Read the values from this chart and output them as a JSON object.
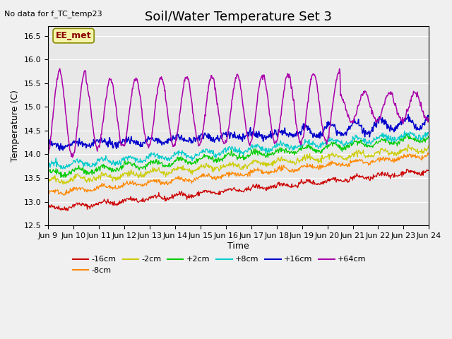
{
  "title": "Soil/Water Temperature Set 3",
  "xlabel": "Time",
  "ylabel": "Temperature (C)",
  "top_label": "No data for f_TC_temp23",
  "annotation": "EE_met",
  "ylim": [
    12.5,
    16.7
  ],
  "xlim": [
    0,
    15
  ],
  "xtick_labels": [
    "Jun 9",
    "Jun 10",
    "Jun 11",
    "Jun 12",
    "Jun 13",
    "Jun 14",
    "Jun 15",
    "Jun 16",
    "Jun 17",
    "Jun 18",
    "Jun 19",
    "Jun 20",
    "Jun 21",
    "Jun 22",
    "Jun 23",
    "Jun 24"
  ],
  "series_colors": {
    "-16cm": "#cc0000",
    "-8cm": "#ff8800",
    "-2cm": "#cccc00",
    "+2cm": "#00cc00",
    "+8cm": "#00cccc",
    "+16cm": "#0000cc",
    "+64cm": "#aa00aa"
  },
  "background_color": "#e8e8e8",
  "grid_color": "#ffffff",
  "title_fontsize": 13,
  "label_fontsize": 9,
  "tick_fontsize": 8
}
